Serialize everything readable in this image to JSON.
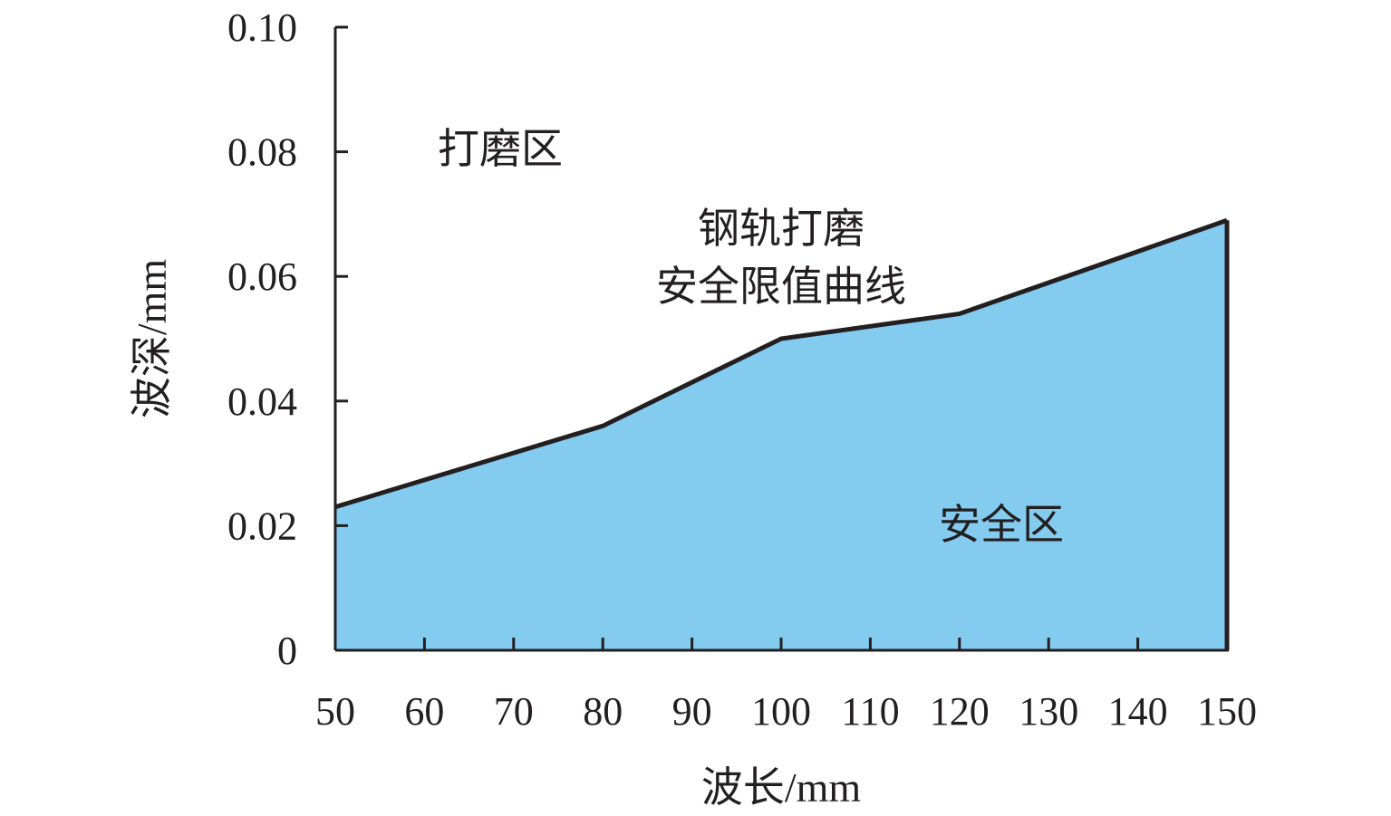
{
  "chart_data": {
    "type": "area",
    "title": "",
    "xlabel": "波长/mm",
    "ylabel": "波深/mm",
    "xlim": [
      50,
      150
    ],
    "ylim": [
      0,
      0.1
    ],
    "xticks": [
      50,
      60,
      70,
      80,
      90,
      100,
      110,
      120,
      130,
      140,
      150
    ],
    "xtick_labels": [
      "50",
      "60",
      "70",
      "80",
      "90",
      "100",
      "110",
      "120",
      "130",
      "140",
      "150"
    ],
    "yticks": [
      0,
      0.02,
      0.04,
      0.06,
      0.08,
      0.1
    ],
    "ytick_labels": [
      "0",
      "0.02",
      "0.04",
      "0.06",
      "0.08",
      "0.10"
    ],
    "grid": false,
    "series": [
      {
        "name": "钢轨打磨安全限值曲线",
        "x": [
          50,
          80,
          100,
          120,
          150
        ],
        "y": [
          0.023,
          0.036,
          0.05,
          0.054,
          0.069
        ],
        "fill_color": "#84CBF0",
        "line_color": "#231f20"
      }
    ],
    "annotations": {
      "grinding_zone": "打磨区",
      "curve_label_line1": "钢轨打磨",
      "curve_label_line2": "安全限值曲线",
      "safe_zone": "安全区"
    }
  }
}
